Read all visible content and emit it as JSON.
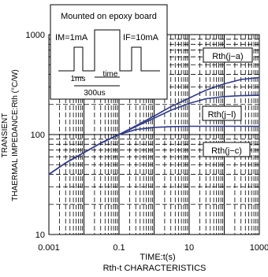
{
  "chart_data": {
    "type": "line",
    "title": "",
    "xlabel": "TIME:t(s)",
    "ylabel_line1": "TRANSIENT",
    "ylabel_line2": "THAERMAL IMPEDANCE:Rth (°C/W)",
    "caption": "Rth-t CHARACTERISTICS",
    "x_scale": "log",
    "y_scale": "log",
    "xlim": [
      0.001,
      1000
    ],
    "ylim": [
      10,
      1000
    ],
    "x_ticks": [
      {
        "value": 0.001,
        "label": "0.001"
      },
      {
        "value": 0.1,
        "label": "0.1"
      },
      {
        "value": 10,
        "label": "10"
      },
      {
        "value": 1000,
        "label": "1000"
      }
    ],
    "y_ticks": [
      {
        "value": 10,
        "label": "10"
      },
      {
        "value": 100,
        "label": "100"
      },
      {
        "value": 1000,
        "label": "1000"
      }
    ],
    "grid": true,
    "series_color": "#2e3a8c",
    "series": [
      {
        "name": "Rth(j-a)",
        "x": [
          0.001,
          0.003,
          0.01,
          0.03,
          0.1,
          0.3,
          1,
          3,
          10,
          30,
          100,
          300,
          1000
        ],
        "y": [
          40,
          52,
          66,
          82,
          100,
          122,
          153,
          190,
          232,
          278,
          322,
          356,
          372
        ]
      },
      {
        "name": "Rth(j-l)",
        "x": [
          0.001,
          0.003,
          0.01,
          0.03,
          0.1,
          0.3,
          1,
          3,
          10,
          30,
          100,
          300,
          1000
        ],
        "y": [
          40,
          52,
          66,
          82,
          100,
          120,
          146,
          175,
          205,
          228,
          240,
          245,
          247
        ]
      },
      {
        "name": "Rth(j-c)",
        "x": [
          0.001,
          0.003,
          0.01,
          0.03,
          0.1,
          0.3,
          1,
          3,
          10,
          30,
          100,
          300,
          1000
        ],
        "y": [
          40,
          52,
          66,
          82,
          100,
          112,
          118,
          120,
          121,
          121,
          121,
          121,
          121
        ]
      }
    ],
    "labels": {
      "ja": "Rth(j−a)",
      "jl": "Rth(j−l)",
      "jc": "Rth(j−c)"
    },
    "inset": {
      "title": "Mounted on epoxy board",
      "im_label": "IM=1mA",
      "if_label": "IF=10mA",
      "t1_label": "1ms",
      "time_label": "time",
      "t2_label": "300us"
    }
  }
}
